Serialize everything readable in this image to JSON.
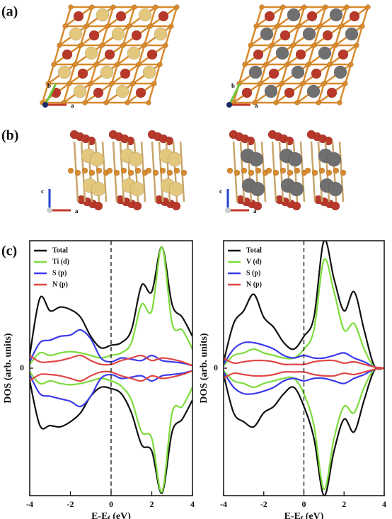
{
  "structures": {
    "panel_labels": [
      "(a)",
      "(b)",
      "(c)"
    ],
    "triads": [
      {
        "v": "b",
        "h": "a"
      },
      {
        "v": "b",
        "h": "a"
      },
      {
        "v": "c",
        "h": "a"
      },
      {
        "v": "c",
        "h": "a"
      }
    ]
  },
  "chart_data": [
    {
      "type": "line",
      "y_label": "DOS (arb. units)",
      "x_label": {
        "main": "E-E",
        "sub": "f",
        "unit": "(eV)"
      },
      "x": [
        -4,
        -3.5,
        -3,
        -2.5,
        -2,
        -1.5,
        -1,
        -0.5,
        0,
        0.5,
        1,
        1.5,
        2,
        2.5,
        3,
        3.5,
        4
      ],
      "xlim": [
        -4,
        4
      ],
      "xticks": [
        -4,
        -2,
        0,
        2,
        4
      ],
      "ylim": [
        -10,
        10
      ],
      "yticks": [
        0
      ],
      "vline": 0,
      "series": [
        {
          "name": "Total",
          "color": "#111111",
          "up": [
            1,
            5.5,
            4.5,
            4.8,
            4.6,
            4.0,
            2.5,
            1.6,
            1.8,
            2.0,
            3.0,
            6.5,
            6.0,
            9.5,
            5.0,
            4.0,
            2.5
          ],
          "down": [
            -1,
            -4.5,
            -4.5,
            -4.6,
            -4.2,
            -3.5,
            -2.2,
            -1.5,
            -1.6,
            -2.0,
            -3.5,
            -6.0,
            -6.5,
            -9.8,
            -5.0,
            -4.0,
            -2.5
          ]
        },
        {
          "name": "Ti (d)",
          "color": "#7ddc3c",
          "up": [
            0.3,
            1.2,
            1.0,
            1.2,
            1.3,
            1.2,
            1.0,
            0.8,
            1.0,
            1.2,
            2.0,
            5.0,
            4.5,
            9.5,
            3.5,
            3.0,
            1.5
          ],
          "down": [
            -0.3,
            -1.2,
            -1.0,
            -1.2,
            -1.3,
            -1.2,
            -1.0,
            -0.8,
            -1.0,
            -1.4,
            -2.5,
            -5.0,
            -5.5,
            -9.7,
            -3.5,
            -3.0,
            -1.5
          ]
        },
        {
          "name": "S (p)",
          "color": "#3b3bea",
          "up": [
            0.5,
            2.0,
            2.2,
            2.5,
            2.6,
            3.0,
            2.3,
            0.8,
            0.5,
            0.8,
            0.7,
            0.6,
            1.0,
            0.6,
            0.5,
            0.4,
            0.2
          ],
          "down": [
            -0.5,
            -2.0,
            -2.2,
            -2.4,
            -2.6,
            -3.0,
            -2.2,
            -0.8,
            -0.5,
            -0.8,
            -0.7,
            -0.6,
            -1.0,
            -0.6,
            -0.5,
            -0.4,
            -0.2
          ]
        },
        {
          "name": "N (p)",
          "color": "#e04646",
          "up": [
            1.0,
            0.5,
            0.5,
            0.6,
            0.8,
            1.0,
            0.6,
            0.3,
            0.3,
            0.6,
            0.8,
            1.0,
            0.6,
            0.8,
            0.7,
            0.5,
            0.2
          ],
          "down": [
            -1.0,
            -0.5,
            -0.5,
            -0.6,
            -0.8,
            -1.0,
            -0.6,
            -0.3,
            -0.3,
            -0.6,
            -0.8,
            -1.0,
            -0.6,
            -0.8,
            -0.7,
            -0.5,
            -0.2
          ]
        }
      ]
    },
    {
      "type": "line",
      "y_label": "DOS (arb. units)",
      "x_label": {
        "main": "E-E",
        "sub": "f",
        "unit": "(eV)"
      },
      "x": [
        -4,
        -3.5,
        -3,
        -2.5,
        -2,
        -1.5,
        -1,
        -0.5,
        0,
        0.5,
        1,
        1.5,
        2,
        2.5,
        3,
        3.5,
        4
      ],
      "xlim": [
        -4,
        4
      ],
      "xticks": [
        -4,
        -2,
        0,
        2,
        4
      ],
      "ylim": [
        -10,
        10
      ],
      "yticks": [
        0
      ],
      "vline": 0,
      "series": [
        {
          "name": "Total",
          "color": "#111111",
          "up": [
            0.5,
            3.5,
            4.5,
            5.8,
            4.0,
            3.2,
            2.0,
            1.5,
            2.5,
            4.0,
            10,
            7.0,
            4.5,
            6.0,
            3.0,
            0.2,
            0
          ],
          "down": [
            -0.5,
            -3.5,
            -4.2,
            -4.6,
            -3.5,
            -3.0,
            -2.0,
            -1.5,
            -3.0,
            -5.5,
            -10,
            -6.5,
            -4.0,
            -5.0,
            -2.5,
            -0.2,
            0
          ]
        },
        {
          "name": "V (d)",
          "color": "#7ddc3c",
          "up": [
            0.2,
            1.0,
            1.2,
            1.5,
            1.2,
            1.0,
            0.8,
            0.8,
            1.5,
            3.0,
            8.5,
            6.0,
            3.0,
            3.5,
            1.5,
            0.1,
            0
          ],
          "down": [
            -0.2,
            -1.0,
            -1.2,
            -1.5,
            -1.2,
            -1.0,
            -0.8,
            -0.8,
            -2.0,
            -4.5,
            -9.5,
            -5.5,
            -3.0,
            -3.5,
            -1.5,
            -0.1,
            0
          ]
        },
        {
          "name": "S (p)",
          "color": "#3b3bea",
          "up": [
            0.3,
            1.5,
            2.0,
            2.0,
            1.8,
            1.5,
            1.0,
            0.8,
            1.0,
            0.8,
            0.8,
            1.0,
            1.2,
            0.8,
            0.5,
            0.1,
            0
          ],
          "down": [
            -0.3,
            -1.5,
            -2.0,
            -2.0,
            -1.8,
            -1.5,
            -1.0,
            -0.8,
            -1.0,
            -0.8,
            -0.8,
            -1.0,
            -1.2,
            -0.8,
            -0.5,
            -0.1,
            0
          ]
        },
        {
          "name": "N (p)",
          "color": "#e04646",
          "up": [
            0.8,
            0.4,
            0.5,
            0.6,
            0.6,
            0.5,
            0.3,
            0.3,
            0.3,
            0.5,
            0.6,
            0.6,
            0.4,
            0.5,
            0.3,
            0.1,
            0
          ],
          "down": [
            -0.8,
            -0.4,
            -0.5,
            -0.6,
            -0.6,
            -0.5,
            -0.3,
            -0.3,
            -0.3,
            -0.5,
            -0.6,
            -0.6,
            -0.4,
            -0.5,
            -0.3,
            -0.1,
            0
          ]
        }
      ]
    }
  ]
}
